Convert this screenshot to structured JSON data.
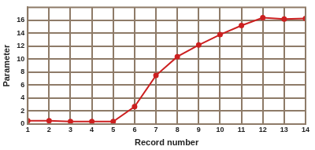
{
  "chart_data": {
    "type": "line",
    "x_label": "Record number",
    "y_label": "Parameter",
    "x": [
      1,
      2,
      3,
      4,
      5,
      6,
      7,
      8,
      9,
      10,
      11,
      12,
      13,
      14
    ],
    "values": [
      0.5,
      0.5,
      0.4,
      0.4,
      0.4,
      2.7,
      7.5,
      10.4,
      12.2,
      13.8,
      15.2,
      16.4,
      16.2,
      16.3
    ],
    "color": "#cc2020",
    "marker": "circle",
    "xlim": [
      1,
      14
    ],
    "xticks": [
      1,
      2,
      3,
      4,
      5,
      6,
      7,
      8,
      9,
      10,
      11,
      12,
      13,
      14
    ],
    "ylim": [
      0,
      18
    ],
    "yticks": [
      0,
      2,
      4,
      6,
      8,
      10,
      12,
      14,
      16
    ],
    "grid": true
  }
}
